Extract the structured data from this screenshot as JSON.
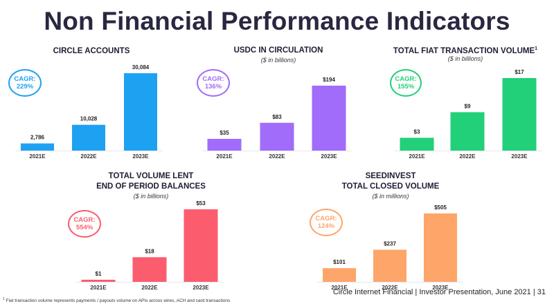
{
  "header": {
    "title": "Non Financial Performance Indicators"
  },
  "footer": {
    "footnote_mark": "1",
    "footnote": "Fiat transaction volume represents payments / payouts volume on APIs across wires, ACH and card transactions",
    "source": "Circle Internet Financial | Investor Presentation, June 2021 | 31"
  },
  "chart_data": [
    {
      "type": "bar",
      "title": "CIRCLE ACCOUNTS",
      "subtitle": "",
      "categories": [
        "2021E",
        "2022E",
        "2023E"
      ],
      "values": [
        2786,
        10028,
        30084
      ],
      "data_labels": [
        "2,786",
        "10,028",
        "30,084"
      ],
      "color": "#1fa1f2",
      "cagr_label": "CAGR:",
      "cagr_value": "229%"
    },
    {
      "type": "bar",
      "title": "USDC IN CIRCULATION",
      "subtitle": "($ in billions)",
      "categories": [
        "2021E",
        "2022E",
        "2023E"
      ],
      "values": [
        35,
        83,
        194
      ],
      "data_labels": [
        "$35",
        "$83",
        "$194"
      ],
      "color": "#a06cf9",
      "cagr_label": "CAGR:",
      "cagr_value": "136%"
    },
    {
      "type": "bar",
      "title": "TOTAL FIAT TRANSACTION VOLUME",
      "title_sup": "1",
      "subtitle": "($ in billions)",
      "categories": [
        "2021E",
        "2022E",
        "2023E"
      ],
      "values": [
        3,
        9,
        17
      ],
      "data_labels": [
        "$3",
        "$9",
        "$17"
      ],
      "color": "#22d07a",
      "cagr_label": "CAGR:",
      "cagr_value": "155%"
    },
    {
      "type": "bar",
      "title": "TOTAL VOLUME LENT",
      "title2": "END OF PERIOD BALANCES",
      "subtitle": "($ in billions)",
      "categories": [
        "2021E",
        "2022E",
        "2023E"
      ],
      "values": [
        1,
        18,
        53
      ],
      "data_labels": [
        "$1",
        "$18",
        "$53"
      ],
      "color": "#fb5d6f",
      "cagr_label": "CAGR:",
      "cagr_value": "554%"
    },
    {
      "type": "bar",
      "title": "SEEDINVEST",
      "title2": "TOTAL CLOSED VOLUME",
      "subtitle": "($ in millions)",
      "categories": [
        "2021E",
        "2022E",
        "2023E"
      ],
      "values": [
        101,
        237,
        505
      ],
      "data_labels": [
        "$101",
        "$237",
        "$505"
      ],
      "color": "#fea56a",
      "cagr_label": "CAGR:",
      "cagr_value": "124%"
    }
  ]
}
